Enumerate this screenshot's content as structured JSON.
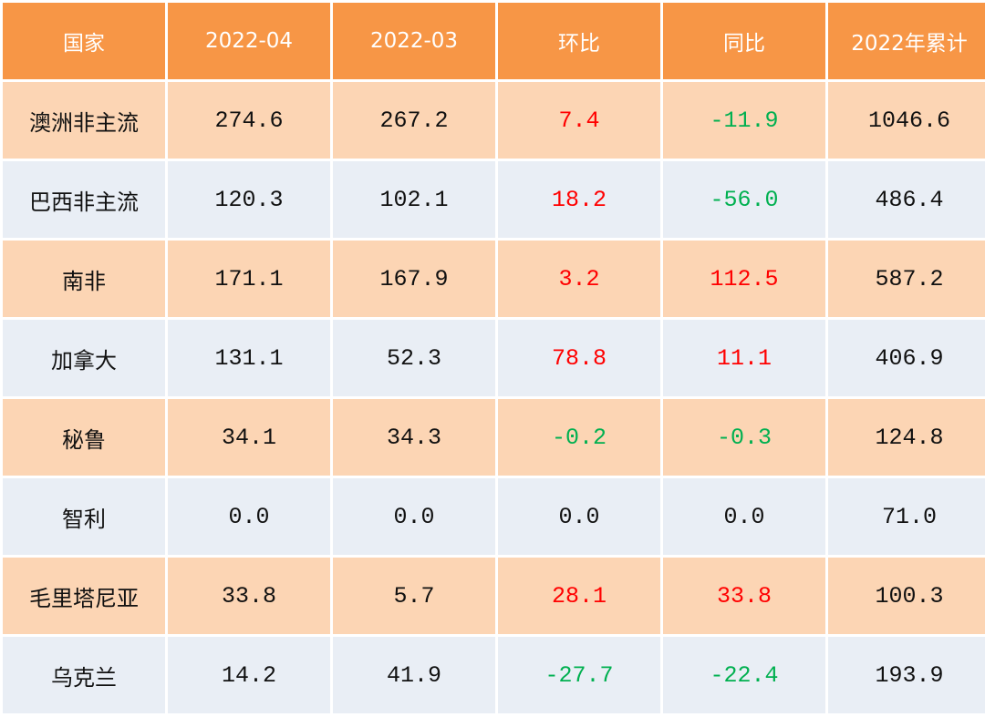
{
  "headers": [
    "国家",
    "2022-04",
    "2022-03",
    "环比",
    "同比",
    "2022年累计"
  ],
  "rows": [
    {
      "country": "澳洲非主流",
      "apr": "274.6",
      "mar": "267.2",
      "mom": "7.4",
      "yoy": "-11.9",
      "ytd": "1046.6"
    },
    {
      "country": "巴西非主流",
      "apr": "120.3",
      "mar": "102.1",
      "mom": "18.2",
      "yoy": "-56.0",
      "ytd": "486.4"
    },
    {
      "country": "南非",
      "apr": "171.1",
      "mar": "167.9",
      "mom": "3.2",
      "yoy": "112.5",
      "ytd": "587.2"
    },
    {
      "country": "加拿大",
      "apr": "131.1",
      "mar": "52.3",
      "mom": "78.8",
      "yoy": "11.1",
      "ytd": "406.9"
    },
    {
      "country": "秘鲁",
      "apr": "34.1",
      "mar": "34.3",
      "mom": "-0.2",
      "yoy": "-0.3",
      "ytd": "124.8"
    },
    {
      "country": "智利",
      "apr": "0.0",
      "mar": "0.0",
      "mom": "0.0",
      "yoy": "0.0",
      "ytd": "71.0"
    },
    {
      "country": "毛里塔尼亚",
      "apr": "33.8",
      "mar": "5.7",
      "mom": "28.1",
      "yoy": "33.8",
      "ytd": "100.3"
    },
    {
      "country": "乌克兰",
      "apr": "14.2",
      "mar": "41.9",
      "mom": "-27.7",
      "yoy": "-22.4",
      "ytd": "193.9"
    }
  ],
  "colors": {
    "header_bg": "#f79646",
    "row_odd_bg": "#fcd5b4",
    "row_even_bg": "#e9eef5",
    "positive": "#ff0000",
    "negative": "#00b050"
  }
}
